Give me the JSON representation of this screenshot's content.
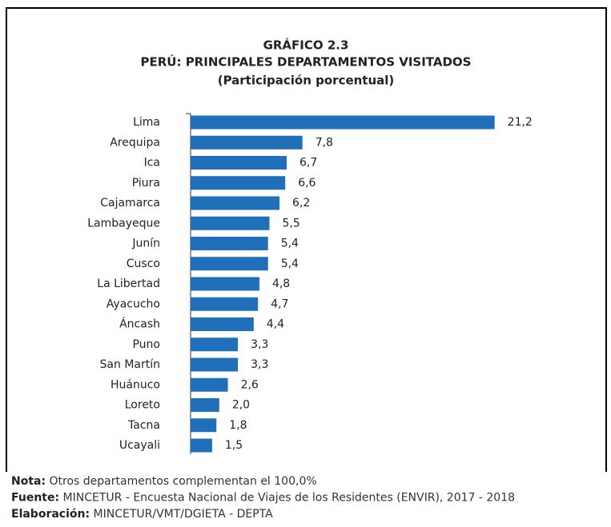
{
  "chart_data": {
    "type": "bar",
    "orientation": "horizontal",
    "title": "GRÁFICO 2.3",
    "subtitle": "PERÚ: PRINCIPALES DEPARTAMENTOS VISITADOS",
    "unit_label": "(Participación porcentual)",
    "categories": [
      "Lima",
      "Arequipa",
      "Ica",
      "Piura",
      "Cajamarca",
      "Lambayeque",
      "Junín",
      "Cusco",
      "La Libertad",
      "Ayacucho",
      "Áncash",
      "Puno",
      "San Martín",
      "Huánuco",
      "Loreto",
      "Tacna",
      "Ucayali"
    ],
    "values": [
      21.2,
      7.8,
      6.7,
      6.6,
      6.2,
      5.5,
      5.4,
      5.4,
      4.8,
      4.7,
      4.4,
      3.3,
      3.3,
      2.6,
      2.0,
      1.8,
      1.5
    ],
    "value_labels": [
      "21,2",
      "7,8",
      "6,7",
      "6,6",
      "6,2",
      "5,5",
      "5,4",
      "5,4",
      "4,8",
      "4,7",
      "4,4",
      "3,3",
      "3,3",
      "2,6",
      "2,0",
      "1,8",
      "1,5"
    ],
    "color": "#1f6fba",
    "xlim": [
      0,
      22
    ],
    "notes": [
      {
        "label": "Nota:",
        "text": " Otros departamentos complementan el 100,0%"
      },
      {
        "label": "Fuente:",
        "text": " MINCETUR - Encuesta Nacional de Viajes de los Residentes (ENVIR), 2017 - 2018"
      },
      {
        "label": "Elaboración:",
        "text": " MINCETUR/VMT/DGIETA - DEPTA"
      }
    ]
  }
}
